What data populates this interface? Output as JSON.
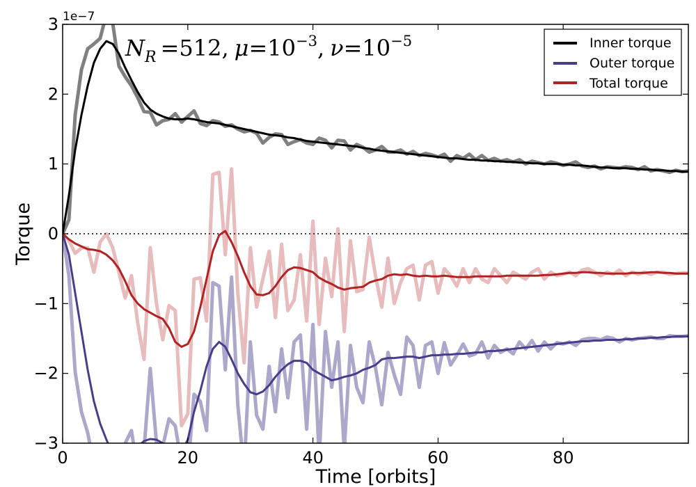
{
  "chart_data": {
    "type": "line",
    "title": "",
    "xlabel": "Time [orbits]",
    "ylabel": "Torque",
    "y_offset_label": "1e−7",
    "xlim": [
      0,
      100
    ],
    "ylim": [
      -3,
      3
    ],
    "x_ticks": [
      0,
      20,
      40,
      60,
      80
    ],
    "x_tick_labels": [
      "0",
      "20",
      "40",
      "60",
      "80"
    ],
    "y_ticks": [
      3,
      2,
      1,
      0,
      -1,
      -2,
      -3
    ],
    "y_tick_labels": [
      "3",
      "2",
      "1",
      "0",
      "−1",
      "−2",
      "−3"
    ],
    "zero_line": {
      "y": 0,
      "style": "dotted"
    },
    "annotation": {
      "n_symbol": "N",
      "n_sub": "R",
      "n_val": "=512,",
      "mu_symbol": "μ",
      "mu_val": "=10",
      "mu_exp": "−3",
      "sep": ",",
      "nu_symbol": "ν",
      "nu_val": "=10",
      "nu_exp": "−5"
    },
    "legend": {
      "position": "top-right",
      "entries": [
        {
          "label": "Inner torque",
          "color": "#000000"
        },
        {
          "label": "Outer torque",
          "color": "#483d8b"
        },
        {
          "label": "Total torque",
          "color": "#b22222"
        }
      ]
    },
    "x": [
      0,
      1,
      2,
      3,
      4,
      5,
      6,
      7,
      8,
      9,
      10,
      11,
      12,
      13,
      14,
      15,
      16,
      17,
      18,
      19,
      20,
      21,
      22,
      23,
      24,
      25,
      26,
      27,
      28,
      29,
      30,
      31,
      32,
      33,
      34,
      35,
      36,
      37,
      38,
      39,
      40,
      41,
      42,
      43,
      44,
      45,
      46,
      47,
      48,
      49,
      50,
      51,
      52,
      53,
      54,
      55,
      56,
      57,
      58,
      59,
      60,
      61,
      62,
      63,
      64,
      65,
      66,
      67,
      68,
      69,
      70,
      71,
      72,
      73,
      74,
      75,
      76,
      77,
      78,
      79,
      80,
      81,
      82,
      83,
      84,
      85,
      86,
      87,
      88,
      89,
      90,
      91,
      92,
      93,
      94,
      95,
      96,
      97,
      98,
      99,
      100
    ],
    "series": [
      {
        "name": "Inner torque (raw)",
        "color": "#808080",
        "opacity": 1.0,
        "width": 5,
        "values": [
          0,
          0.2,
          1.7,
          2.35,
          2.65,
          2.72,
          2.8,
          3.15,
          3.02,
          2.4,
          2.25,
          2.12,
          1.95,
          1.75,
          1.74,
          1.56,
          1.62,
          1.64,
          1.72,
          1.6,
          1.68,
          1.76,
          1.58,
          1.55,
          1.62,
          1.6,
          1.54,
          1.56,
          1.5,
          1.46,
          1.48,
          1.44,
          1.3,
          1.38,
          1.43,
          1.42,
          1.28,
          1.32,
          1.35,
          1.3,
          1.28,
          1.37,
          1.34,
          1.23,
          1.34,
          1.33,
          1.2,
          1.28,
          1.24,
          1.17,
          1.2,
          1.25,
          1.17,
          1.17,
          1.2,
          1.14,
          1.18,
          1.12,
          1.15,
          1.13,
          1.1,
          1.14,
          1.04,
          1.12,
          1.08,
          1.14,
          1.06,
          1.12,
          1.05,
          1.08,
          1.04,
          1.06,
          1.03,
          1.06,
          1.0,
          1.04,
          1.02,
          1.0,
          1.03,
          1.01,
          0.98,
          1.0,
          1.03,
          0.97,
          0.95,
          0.97,
          0.93,
          0.96,
          0.95,
          0.94,
          0.96,
          0.95,
          0.92,
          0.96,
          0.9,
          0.92,
          0.9,
          0.88,
          0.91,
          0.89,
          0.9
        ]
      },
      {
        "name": "Outer torque (raw)",
        "color": "#483d8b",
        "opacity": 0.45,
        "width": 5,
        "values": [
          0,
          -0.6,
          -1.98,
          -2.55,
          -2.85,
          -3.3,
          -3.5,
          -3.6,
          -3.4,
          -3.5,
          -3.0,
          -2.82,
          -3.4,
          -3.1,
          -1.93,
          -3.0,
          -3.05,
          -2.65,
          -2.75,
          -3.3,
          -3.4,
          -2.3,
          -2.4,
          -2.82,
          -0.7,
          -0.75,
          -1.95,
          -0.62,
          -2.45,
          -3.4,
          -1.55,
          -2.6,
          -2.8,
          -1.9,
          -2.55,
          -1.65,
          -2.35,
          -1.55,
          -1.45,
          -2.8,
          -1.3,
          -3.2,
          -1.4,
          -2.2,
          -1.55,
          -3.1,
          -1.6,
          -2.2,
          -2.42,
          -1.55,
          -1.92,
          -2.45,
          -1.7,
          -2.02,
          -2.3,
          -1.48,
          -1.6,
          -2.2,
          -1.6,
          -1.55,
          -2.0,
          -1.56,
          -1.88,
          -1.74,
          -1.58,
          -1.75,
          -1.72,
          -1.55,
          -1.78,
          -1.6,
          -1.7,
          -1.65,
          -1.72,
          -1.55,
          -1.65,
          -1.53,
          -1.68,
          -1.55,
          -1.65,
          -1.56,
          -1.58,
          -1.55,
          -1.6,
          -1.52,
          -1.5,
          -1.5,
          -1.52,
          -1.48,
          -1.5,
          -1.55,
          -1.5,
          -1.52,
          -1.5,
          -1.49,
          -1.48,
          -1.5,
          -1.5,
          -1.46,
          -1.47,
          -1.47,
          -1.46
        ]
      },
      {
        "name": "Total torque (raw)",
        "color": "#b22222",
        "opacity": 0.3,
        "width": 5,
        "values": [
          0,
          -0.1,
          -0.28,
          -0.2,
          -0.2,
          -0.55,
          -0.12,
          0.0,
          -0.2,
          -0.55,
          -0.92,
          -0.6,
          -1.28,
          -1.8,
          -0.2,
          -1.0,
          -1.52,
          -1.03,
          -1.1,
          -2.75,
          -2.58,
          -0.65,
          -0.63,
          -1.25,
          0.85,
          0.88,
          -0.3,
          0.93,
          -0.85,
          -1.85,
          -0.2,
          -1.05,
          -0.65,
          -0.25,
          -1.2,
          -0.15,
          -1.1,
          -0.95,
          -0.3,
          -1.25,
          0.18,
          -1.3,
          -0.35,
          -0.9,
          0.07,
          -1.4,
          -0.1,
          -0.83,
          -0.8,
          -0.05,
          -0.6,
          -1.05,
          -0.35,
          -1.0,
          -0.7,
          -0.5,
          -0.45,
          -0.95,
          -0.45,
          -0.4,
          -0.85,
          -0.5,
          -0.6,
          -0.75,
          -0.5,
          -0.7,
          -0.5,
          -0.65,
          -0.7,
          -0.5,
          -0.6,
          -0.7,
          -0.55,
          -0.6,
          -0.65,
          -0.55,
          -0.5,
          -0.65,
          -0.55,
          -0.6,
          -0.58,
          -0.55,
          -0.6,
          -0.52,
          -0.5,
          -0.55,
          -0.6,
          -0.55,
          -0.58,
          -0.52,
          -0.6,
          -0.55,
          -0.58,
          -0.55,
          -0.58,
          -0.55,
          -0.55,
          -0.58,
          -0.57,
          -0.56,
          -0.56
        ]
      },
      {
        "name": "Inner torque",
        "color": "#000000",
        "opacity": 1.0,
        "width": 3,
        "values": [
          0,
          0.55,
          1.2,
          1.7,
          2.12,
          2.45,
          2.65,
          2.76,
          2.72,
          2.58,
          2.38,
          2.2,
          2.03,
          1.88,
          1.78,
          1.72,
          1.68,
          1.65,
          1.64,
          1.64,
          1.65,
          1.64,
          1.62,
          1.6,
          1.59,
          1.58,
          1.56,
          1.54,
          1.52,
          1.5,
          1.48,
          1.46,
          1.44,
          1.42,
          1.41,
          1.4,
          1.38,
          1.37,
          1.35,
          1.33,
          1.32,
          1.31,
          1.3,
          1.29,
          1.28,
          1.27,
          1.26,
          1.25,
          1.23,
          1.22,
          1.2,
          1.19,
          1.18,
          1.17,
          1.16,
          1.15,
          1.14,
          1.13,
          1.12,
          1.11,
          1.1,
          1.09,
          1.08,
          1.08,
          1.07,
          1.06,
          1.06,
          1.05,
          1.05,
          1.04,
          1.04,
          1.03,
          1.03,
          1.02,
          1.02,
          1.01,
          1.01,
          1.0,
          1.0,
          1.0,
          0.99,
          0.99,
          0.98,
          0.98,
          0.97,
          0.96,
          0.95,
          0.95,
          0.94,
          0.94,
          0.94,
          0.93,
          0.93,
          0.92,
          0.92,
          0.91,
          0.91,
          0.9,
          0.9,
          0.89,
          0.89
        ]
      },
      {
        "name": "Outer torque",
        "color": "#483d8b",
        "opacity": 1.0,
        "width": 3,
        "values": [
          0,
          -0.3,
          -0.85,
          -1.4,
          -1.95,
          -2.4,
          -2.72,
          -2.95,
          -3.15,
          -3.2,
          -3.2,
          -3.15,
          -3.05,
          -2.97,
          -2.94,
          -2.95,
          -3.0,
          -3.05,
          -3.1,
          -3.12,
          -2.95,
          -2.55,
          -2.25,
          -1.9,
          -1.65,
          -1.55,
          -1.62,
          -1.8,
          -2.0,
          -2.15,
          -2.27,
          -2.3,
          -2.26,
          -2.17,
          -2.05,
          -1.95,
          -1.87,
          -1.82,
          -1.82,
          -1.85,
          -1.95,
          -2.0,
          -2.05,
          -2.1,
          -2.08,
          -2.05,
          -2.03,
          -2.0,
          -1.95,
          -1.92,
          -1.88,
          -1.8,
          -1.78,
          -1.78,
          -1.77,
          -1.76,
          -1.76,
          -1.78,
          -1.76,
          -1.74,
          -1.74,
          -1.73,
          -1.73,
          -1.72,
          -1.72,
          -1.71,
          -1.7,
          -1.7,
          -1.68,
          -1.68,
          -1.67,
          -1.66,
          -1.65,
          -1.64,
          -1.63,
          -1.62,
          -1.61,
          -1.6,
          -1.59,
          -1.58,
          -1.57,
          -1.56,
          -1.55,
          -1.54,
          -1.54,
          -1.53,
          -1.53,
          -1.52,
          -1.52,
          -1.52,
          -1.51,
          -1.51,
          -1.5,
          -1.5,
          -1.49,
          -1.49,
          -1.48,
          -1.48,
          -1.47,
          -1.47,
          -1.47
        ]
      },
      {
        "name": "Total torque",
        "color": "#b22222",
        "opacity": 1.0,
        "width": 3,
        "values": [
          0,
          -0.08,
          -0.14,
          -0.18,
          -0.22,
          -0.23,
          -0.25,
          -0.3,
          -0.38,
          -0.5,
          -0.68,
          -0.88,
          -1.0,
          -1.08,
          -1.13,
          -1.18,
          -1.22,
          -1.35,
          -1.55,
          -1.62,
          -1.58,
          -1.4,
          -1.05,
          -0.65,
          -0.25,
          -0.02,
          0.04,
          -0.12,
          -0.32,
          -0.55,
          -0.75,
          -0.87,
          -0.88,
          -0.85,
          -0.75,
          -0.62,
          -0.52,
          -0.48,
          -0.49,
          -0.52,
          -0.55,
          -0.63,
          -0.68,
          -0.72,
          -0.77,
          -0.8,
          -0.78,
          -0.77,
          -0.76,
          -0.7,
          -0.67,
          -0.65,
          -0.6,
          -0.58,
          -0.59,
          -0.58,
          -0.6,
          -0.61,
          -0.6,
          -0.61,
          -0.61,
          -0.6,
          -0.61,
          -0.62,
          -0.62,
          -0.62,
          -0.61,
          -0.61,
          -0.61,
          -0.61,
          -0.61,
          -0.6,
          -0.6,
          -0.6,
          -0.6,
          -0.6,
          -0.6,
          -0.59,
          -0.59,
          -0.58,
          -0.57,
          -0.56,
          -0.56,
          -0.55,
          -0.55,
          -0.56,
          -0.56,
          -0.57,
          -0.57,
          -0.57,
          -0.57,
          -0.56,
          -0.56,
          -0.56,
          -0.55,
          -0.55,
          -0.56,
          -0.56,
          -0.57,
          -0.57,
          -0.57
        ]
      }
    ]
  }
}
